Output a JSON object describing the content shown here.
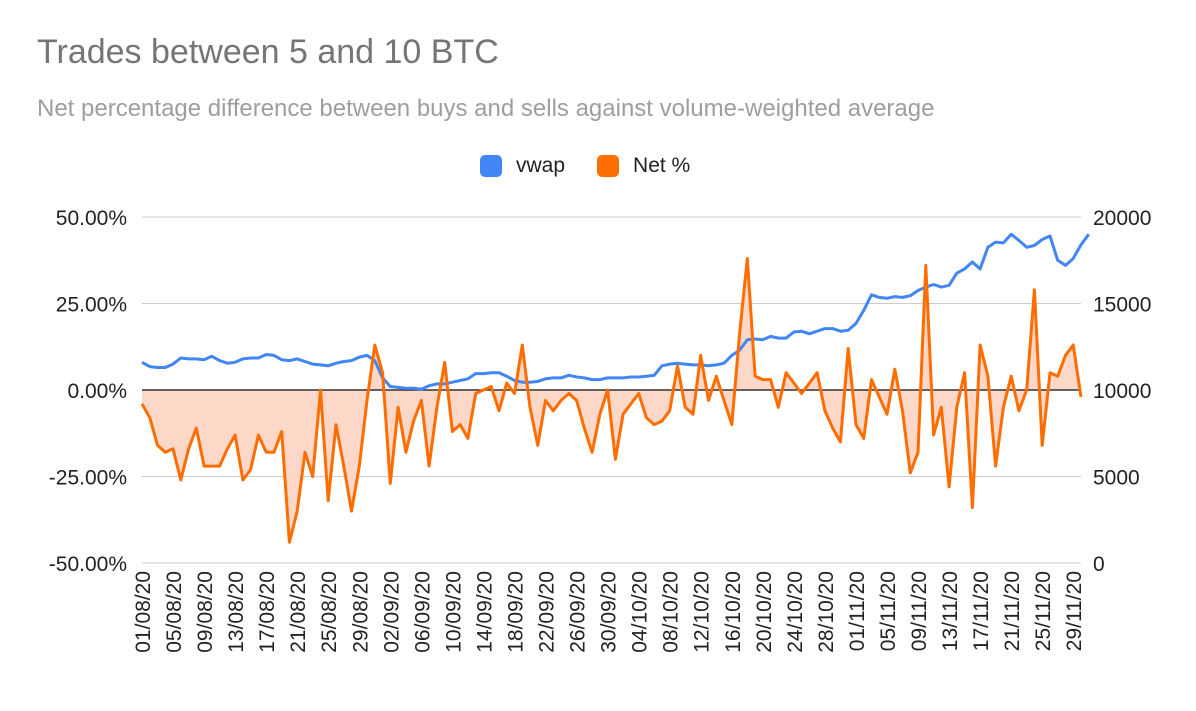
{
  "chart_data": {
    "type": "line",
    "title": "Trades between 5 and 10 BTC",
    "subtitle": "Net percentage difference between buys and sells against volume-weighted average",
    "legend": {
      "placement": "top",
      "entries": [
        {
          "label": "vwap",
          "color": "#4285f4"
        },
        {
          "label": "Net %",
          "color": "#ff6d01"
        }
      ]
    },
    "x_tick_labels": [
      "01/08/20",
      "05/08/20",
      "09/08/20",
      "13/08/20",
      "17/08/20",
      "21/08/20",
      "25/08/20",
      "29/08/20",
      "02/09/20",
      "06/09/20",
      "10/09/20",
      "14/09/20",
      "18/09/20",
      "22/09/20",
      "26/09/20",
      "30/09/20",
      "04/10/20",
      "08/10/20",
      "12/10/20",
      "16/10/20",
      "20/10/20",
      "24/10/20",
      "28/10/20",
      "01/11/20",
      "05/11/20",
      "09/11/20",
      "13/11/20",
      "17/11/20",
      "21/11/20",
      "25/11/20",
      "29/11/20"
    ],
    "left_axis": {
      "ticks": [
        "50.00%",
        "25.00%",
        "0.00%",
        "-25.00%",
        "-50.00%"
      ],
      "range": [
        -50,
        50
      ]
    },
    "right_axis": {
      "ticks": [
        "20000",
        "15000",
        "10000",
        "5000",
        "0"
      ],
      "range": [
        0,
        20000
      ]
    },
    "grid": true,
    "series": [
      {
        "name": "vwap",
        "axis": "right",
        "color": "#4285f4",
        "values": [
          11600,
          11350,
          11300,
          11300,
          11500,
          11850,
          11800,
          11800,
          11750,
          11950,
          11700,
          11550,
          11600,
          11800,
          11850,
          11850,
          12050,
          12000,
          11750,
          11700,
          11800,
          11650,
          11500,
          11450,
          11400,
          11550,
          11650,
          11700,
          11900,
          12000,
          11700,
          10700,
          10200,
          10150,
          10100,
          10100,
          10050,
          10250,
          10350,
          10350,
          10450,
          10550,
          10650,
          10950,
          10950,
          11000,
          11000,
          10800,
          10550,
          10450,
          10450,
          10500,
          10650,
          10700,
          10700,
          10850,
          10750,
          10700,
          10600,
          10600,
          10700,
          10700,
          10700,
          10750,
          10750,
          10800,
          10850,
          11400,
          11500,
          11550,
          11500,
          11450,
          11450,
          11400,
          11450,
          11550,
          12000,
          12300,
          12900,
          12950,
          12900,
          13100,
          13000,
          13000,
          13350,
          13400,
          13250,
          13400,
          13550,
          13550,
          13400,
          13450,
          13850,
          14600,
          15500,
          15350,
          15300,
          15400,
          15350,
          15450,
          15750,
          15950,
          16100,
          15950,
          16050,
          16750,
          17000,
          17400,
          17000,
          18250,
          18550,
          18500,
          19000,
          18650,
          18250,
          18350,
          18700,
          18900,
          17500,
          17200,
          17600,
          18400,
          19000
        ],
        "notes": "values estimated from gridlines; right axis scale"
      },
      {
        "name": "Net %",
        "axis": "left",
        "color": "#ff6d01",
        "fill": "#fdd4c2",
        "values": [
          -4,
          -8,
          -16,
          -18,
          -17,
          -26,
          -17,
          -11,
          -22,
          -22,
          -22,
          -17,
          -13,
          -26,
          -23,
          -13,
          -18,
          -18,
          -12,
          -44,
          -35,
          -18,
          -25,
          0,
          -32,
          -10,
          -22,
          -35,
          -22,
          -3,
          13,
          5,
          -27,
          -5,
          -18,
          -9,
          -3,
          -22,
          -5,
          8,
          -12,
          -10,
          -14,
          -1,
          0,
          1,
          -6,
          2,
          -1,
          13,
          -5,
          -16,
          -3,
          -6,
          -3,
          -1,
          -3,
          -11,
          -18,
          -7,
          0,
          -20,
          -7,
          -4,
          -1,
          -8,
          -10,
          -9,
          -6,
          7,
          -5,
          -7,
          10,
          -3,
          4,
          -3,
          -10,
          16,
          38,
          4,
          3,
          3,
          -5,
          5,
          2,
          -1,
          2,
          5,
          -6,
          -11,
          -15,
          12,
          -10,
          -14,
          3,
          -2,
          -7,
          6,
          -6,
          -24,
          -18,
          36,
          -13,
          -5,
          -28,
          -5,
          5,
          -34,
          13,
          4,
          -22,
          -5,
          4,
          -6,
          0,
          29,
          -16,
          5,
          4,
          10,
          13,
          -2
        ]
      }
    ]
  }
}
